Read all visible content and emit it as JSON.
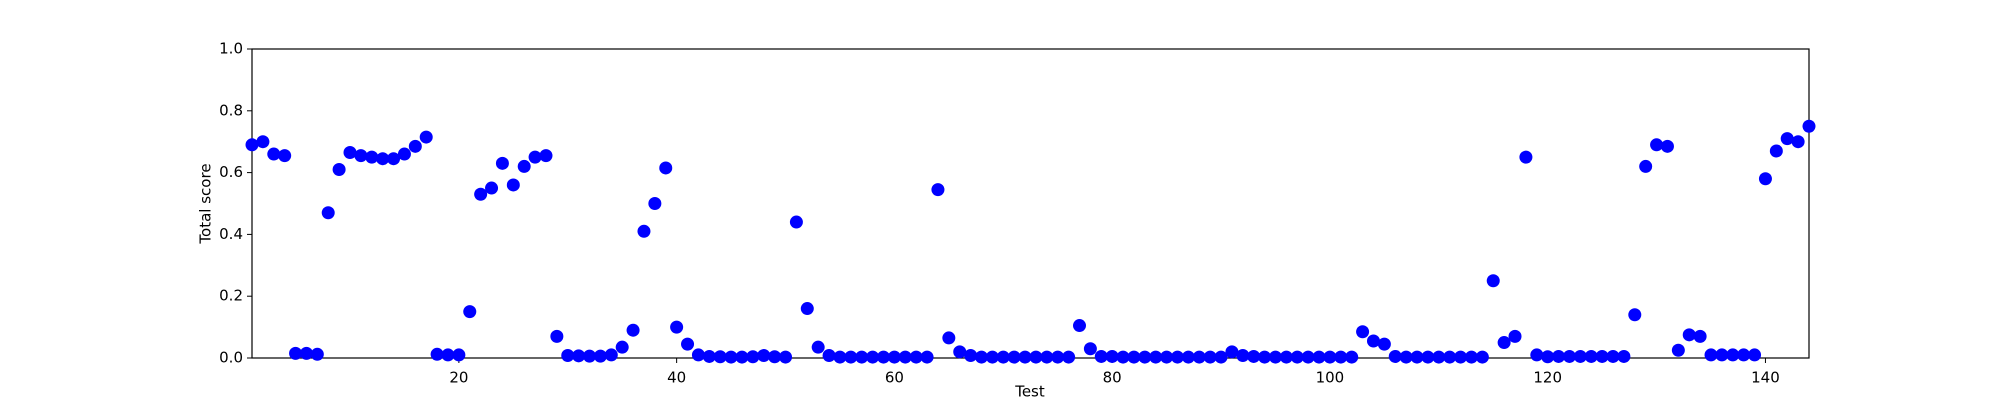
{
  "chart_data": {
    "type": "scatter",
    "xlabel": "Test",
    "ylabel": "Total score",
    "color": "#0000ff",
    "x": [
      1,
      2,
      3,
      4,
      5,
      6,
      7,
      8,
      9,
      10,
      11,
      12,
      13,
      14,
      15,
      16,
      17,
      18,
      19,
      20,
      21,
      22,
      23,
      24,
      25,
      26,
      27,
      28,
      29,
      30,
      31,
      32,
      33,
      34,
      35,
      36,
      37,
      38,
      39,
      40,
      41,
      42,
      43,
      44,
      45,
      46,
      47,
      48,
      49,
      50,
      51,
      52,
      53,
      54,
      55,
      56,
      57,
      58,
      59,
      60,
      61,
      62,
      63,
      64,
      65,
      66,
      67,
      68,
      69,
      70,
      71,
      72,
      73,
      74,
      75,
      76,
      77,
      78,
      79,
      80,
      81,
      82,
      83,
      84,
      85,
      86,
      87,
      88,
      89,
      90,
      91,
      92,
      93,
      94,
      95,
      96,
      97,
      98,
      99,
      100,
      101,
      102,
      103,
      104,
      105,
      106,
      107,
      108,
      109,
      110,
      111,
      112,
      113,
      114,
      115,
      116,
      117,
      118,
      119,
      120,
      121,
      122,
      123,
      124,
      125,
      126,
      127,
      128,
      129,
      130,
      131,
      132,
      133,
      134,
      135,
      136,
      137,
      138,
      139,
      140,
      141,
      142,
      143,
      144
    ],
    "values": [
      0.69,
      0.7,
      0.66,
      0.655,
      0.015,
      0.015,
      0.012,
      0.47,
      0.61,
      0.665,
      0.655,
      0.65,
      0.645,
      0.645,
      0.66,
      0.685,
      0.715,
      0.012,
      0.01,
      0.01,
      0.15,
      0.53,
      0.55,
      0.63,
      0.56,
      0.62,
      0.65,
      0.655,
      0.07,
      0.008,
      0.007,
      0.006,
      0.006,
      0.01,
      0.035,
      0.09,
      0.41,
      0.5,
      0.615,
      0.1,
      0.045,
      0.01,
      0.005,
      0.004,
      0.003,
      0.003,
      0.004,
      0.008,
      0.004,
      0.003,
      0.44,
      0.16,
      0.035,
      0.008,
      0.003,
      0.003,
      0.003,
      0.003,
      0.003,
      0.003,
      0.003,
      0.003,
      0.003,
      0.545,
      0.065,
      0.02,
      0.008,
      0.003,
      0.003,
      0.003,
      0.003,
      0.003,
      0.003,
      0.003,
      0.003,
      0.003,
      0.105,
      0.03,
      0.005,
      0.005,
      0.003,
      0.003,
      0.003,
      0.003,
      0.003,
      0.003,
      0.003,
      0.003,
      0.003,
      0.003,
      0.02,
      0.008,
      0.005,
      0.003,
      0.003,
      0.003,
      0.003,
      0.003,
      0.003,
      0.003,
      0.003,
      0.003,
      0.085,
      0.055,
      0.045,
      0.005,
      0.003,
      0.003,
      0.003,
      0.003,
      0.003,
      0.003,
      0.003,
      0.003,
      0.25,
      0.05,
      0.07,
      0.65,
      0.01,
      0.004,
      0.005,
      0.005,
      0.005,
      0.005,
      0.005,
      0.005,
      0.005,
      0.14,
      0.62,
      0.69,
      0.685,
      0.025,
      0.075,
      0.07,
      0.01,
      0.01,
      0.01,
      0.01,
      0.01,
      0.58,
      0.67,
      0.71,
      0.7,
      0.75
    ],
    "xlim": [
      1,
      144
    ],
    "ylim": [
      0,
      1
    ],
    "xticks": [
      20,
      40,
      60,
      80,
      100,
      120,
      140
    ],
    "yticks": [
      {
        "value": 0,
        "label": "0.0"
      },
      0.2,
      0.4,
      0.6,
      0.8,
      {
        "value": 1,
        "label": "1.0"
      }
    ]
  }
}
